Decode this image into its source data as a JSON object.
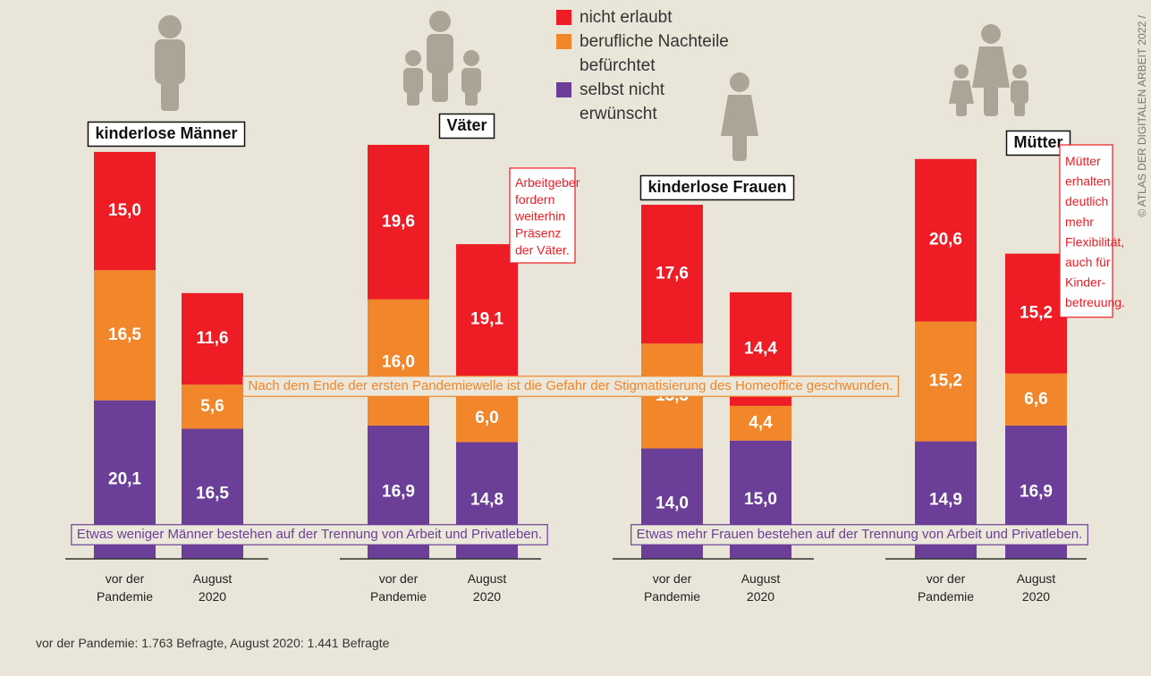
{
  "chart_data": {
    "type": "bar",
    "stacked": true,
    "groups": [
      "kinderlose Männer",
      "Väter",
      "kinderlose Frauen",
      "Mütter"
    ],
    "categories": [
      "vor der Pandemie",
      "August 2020",
      "vor der Pandemie",
      "August 2020",
      "vor der Pandemie",
      "August 2020",
      "vor der Pandemie",
      "August 2020"
    ],
    "series": [
      {
        "name": "nicht erlaubt",
        "color": "#ee1c25",
        "values": [
          15.0,
          11.6,
          19.6,
          19.1,
          17.6,
          14.4,
          20.6,
          15.2
        ],
        "value_labels": [
          "15,0",
          "11,6",
          "19,6",
          "19,1",
          "17,6",
          "14,4",
          "20,6",
          "15,2"
        ]
      },
      {
        "name": "berufliche Nachteile befürchtet",
        "color": "#f1862b",
        "values": [
          16.5,
          5.6,
          16.0,
          6.0,
          13.3,
          4.4,
          15.2,
          6.6
        ],
        "value_labels": [
          "16,5",
          "5,6",
          "16,0",
          "6,0",
          "13,3",
          "4,4",
          "15,2",
          "6,6"
        ]
      },
      {
        "name": "selbst nicht erwünscht",
        "color": "#6b3f98",
        "values": [
          20.1,
          16.5,
          16.9,
          14.8,
          14.0,
          15.0,
          14.9,
          16.9
        ],
        "value_labels": [
          "20,1",
          "16,5",
          "16,9",
          "14,8",
          "14,0",
          "15,0",
          "14,9",
          "16,9"
        ]
      }
    ],
    "annotations": [
      {
        "lines": [
          "Arbeitgeber",
          "fordern",
          "weiterhin",
          "Präsenz",
          "der Väter."
        ],
        "color": "#ee1c25"
      },
      {
        "lines": [
          "Mütter",
          "erhalten",
          "deutlich",
          "mehr",
          "Flexibilität,",
          "auch für",
          "Kinder-",
          "betreuung."
        ],
        "color": "#ee1c25"
      },
      {
        "text": "Nach dem Ende der ersten Pandemiewelle ist die Gefahr der Stigmatisierung des Homeoffice geschwunden.",
        "color": "#f1862b"
      },
      {
        "text": "Etwas weniger Männer bestehen auf der Trennung von Arbeit und Privatleben.",
        "color": "#6b3f98"
      },
      {
        "text": "Etwas mehr Frauen bestehen auf der Trennung von Arbeit und Privatleben.",
        "color": "#6b3f98"
      }
    ],
    "note": "vor der Pandemie: 1.763 Befragte, August 2020: 1.441 Befragte",
    "credit": "© ATLAS DER DIGITALEN ARBEIT 2022 /"
  }
}
